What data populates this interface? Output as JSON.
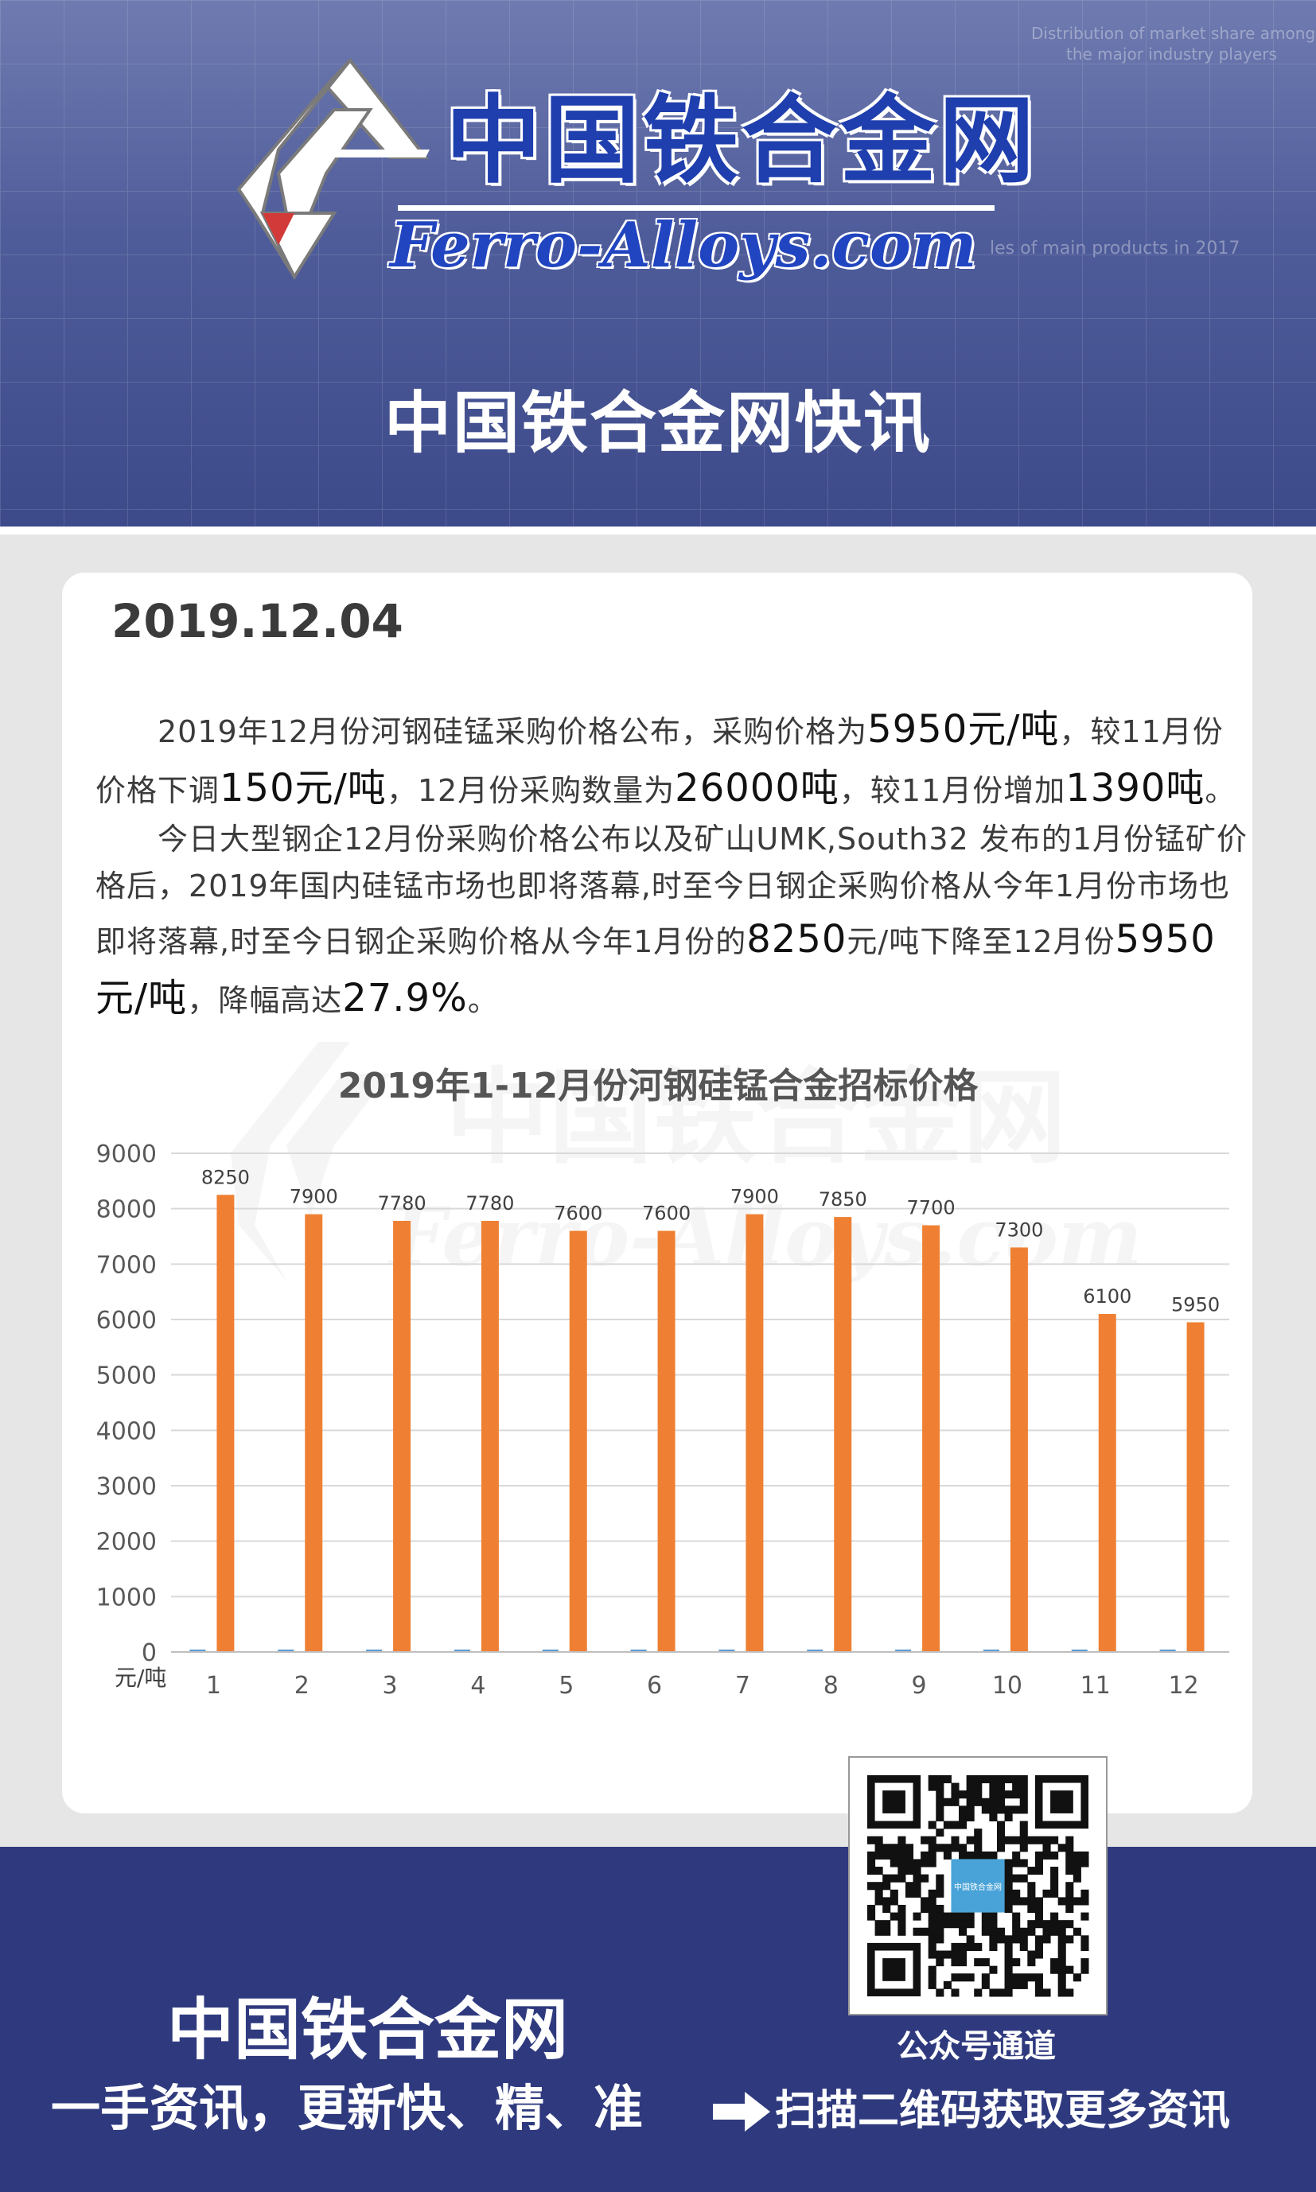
{
  "header": {
    "logo_cn": "中国铁合金网",
    "logo_en": "Ferro-Alloys.com",
    "bg_text_1": "Distribution of market share among",
    "bg_text_2": "the major industry players",
    "bg_text_3": "les of main products in 2017",
    "title": "中国铁合金网快讯"
  },
  "article": {
    "date": "2019.12.04",
    "p1": [
      {
        "t": "　　2019年12月份河钢硅锰采购价格公布，采购价格为",
        "big": false
      },
      {
        "t": "5950元/吨",
        "big": true
      },
      {
        "t": "，较11月份价格下调",
        "big": false
      },
      {
        "t": "150元/吨",
        "big": true
      },
      {
        "t": "，12月份采购数量为",
        "big": false
      },
      {
        "t": "26000吨",
        "big": true
      },
      {
        "t": "，较11月份增加",
        "big": false
      },
      {
        "t": "1390吨",
        "big": true
      },
      {
        "t": "。",
        "big": false
      }
    ],
    "p2": [
      {
        "t": "　　今日大型钢企12月份采购价格公布以及矿山UMK,South32 发布的1月份锰矿价格后，2019年国内硅锰市场也即将落幕,时至今日钢企采购价格从今年1月份市场也即将落幕,时至今日钢企采购价格从今年1月份的",
        "big": false
      },
      {
        "t": "8250",
        "big": true
      },
      {
        "t": "元/吨下降至12月份",
        "big": false
      },
      {
        "t": "5950元/吨",
        "big": true
      },
      {
        "t": "，降幅高达",
        "big": false
      },
      {
        "t": "27.9%",
        "big": true
      },
      {
        "t": "。",
        "big": false
      }
    ]
  },
  "chart_data": {
    "type": "bar",
    "title": "2019年1-12月份河钢硅锰合金招标价格",
    "ylabel": "元/吨",
    "categories": [
      "1",
      "2",
      "3",
      "4",
      "5",
      "6",
      "7",
      "8",
      "9",
      "10",
      "11",
      "12"
    ],
    "values": [
      8250,
      7900,
      7780,
      7780,
      7600,
      7600,
      7900,
      7850,
      7700,
      7300,
      6100,
      5950
    ],
    "ylim": [
      0,
      9000
    ],
    "yticks": [
      0,
      1000,
      2000,
      3000,
      4000,
      5000,
      6000,
      7000,
      8000,
      9000
    ],
    "grid": true,
    "bar_color": "#ef8033"
  },
  "footer": {
    "name": "中国铁合金网",
    "slogan": "一手资讯，更新快、精、准",
    "scan_text": "扫描二维码获取更多资讯",
    "qr_caption": "公众号通道",
    "qr_center_text": "中国铁合金网"
  }
}
